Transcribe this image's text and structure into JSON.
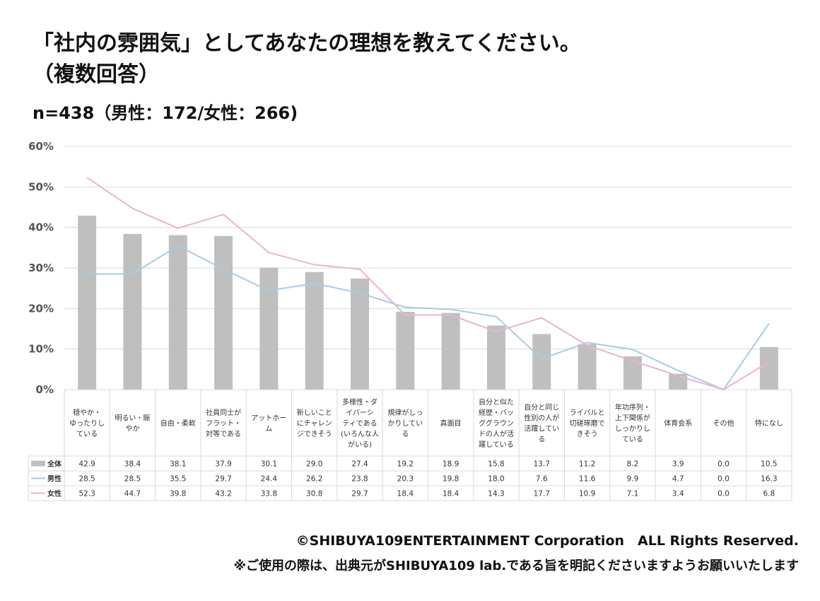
{
  "title_line1": "「社内の雰囲気」としてあなたの理想を教えてください。",
  "title_line2": "（複数回答）",
  "subtitle": "n=438（男性：172/女性：266)",
  "footer_copyright": "©SHIBUYA109ENTERTAINMENT Corporation　ALL Rights Reserved.",
  "footer_note": "※ご使用の際は、出典元がSHIBUYA109 lab.である旨を明記くださいますようお願いいたします",
  "colors": {
    "bar": "#bfbfbf",
    "male": "#a9cbe1",
    "female": "#e9b3d4",
    "grid": "#d9d9d9"
  },
  "chart_data": {
    "type": "bar",
    "ylim": [
      0,
      60
    ],
    "yticks": [
      "0%",
      "10%",
      "20%",
      "30%",
      "40%",
      "50%",
      "60%"
    ],
    "categories": [
      [
        "穏やか・",
        "ゆったりし",
        "ている"
      ],
      [
        "明るい・賑",
        "やか"
      ],
      [
        "自由・柔軟"
      ],
      [
        "社員同士が",
        "フラット・",
        "対等である"
      ],
      [
        "アットホー",
        "ム"
      ],
      [
        "新しいこと",
        "にチャレン",
        "ジできそう"
      ],
      [
        "多様性・ダ",
        "イバーシ",
        "ティである",
        "(いろんな人",
        "がいる)"
      ],
      [
        "規律がしっ",
        "かりしてい",
        "る"
      ],
      [
        "真面目"
      ],
      [
        "自分と似た",
        "経歴・バッ",
        "ググラウン",
        "ドの人が活",
        "躍している"
      ],
      [
        "自分と同じ",
        "性別の人が",
        "活躍してい",
        "る"
      ],
      [
        "ライバルと",
        "切磋琢磨で",
        "きそう"
      ],
      [
        "年功序列・",
        "上下関係が",
        "しっかりし",
        "ている"
      ],
      [
        "体育会系"
      ],
      [
        "その他"
      ],
      [
        "特になし"
      ]
    ],
    "series": [
      {
        "name": "全体",
        "kind": "bar",
        "values": [
          42.9,
          38.4,
          38.1,
          37.9,
          30.1,
          29.0,
          27.4,
          19.2,
          18.9,
          15.8,
          13.7,
          11.2,
          8.2,
          3.9,
          0.0,
          10.5
        ]
      },
      {
        "name": "男性",
        "kind": "line",
        "values": [
          28.5,
          28.5,
          35.5,
          29.7,
          24.4,
          26.2,
          23.8,
          20.3,
          19.8,
          18.0,
          7.6,
          11.6,
          9.9,
          4.7,
          0.0,
          16.3
        ]
      },
      {
        "name": "女性",
        "kind": "line",
        "values": [
          52.3,
          44.7,
          39.8,
          43.2,
          33.8,
          30.8,
          29.7,
          18.4,
          18.4,
          14.3,
          17.7,
          10.9,
          7.1,
          3.4,
          0.0,
          6.8
        ]
      }
    ]
  }
}
